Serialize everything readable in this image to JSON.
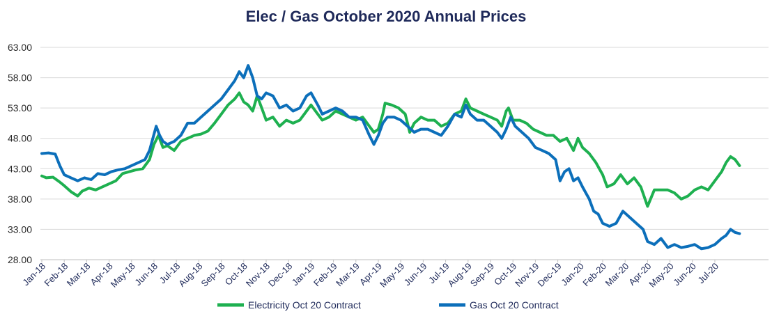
{
  "chart_data": {
    "type": "line",
    "title": "Elec / Gas October 2020 Annual Prices",
    "xlabel": "",
    "ylabel": "",
    "ylim": [
      28,
      63
    ],
    "yticks": [
      "63.00",
      "58.00",
      "53.00",
      "48.00",
      "43.00",
      "38.00",
      "33.00",
      "28.00"
    ],
    "x_ticks": [
      "Jan-18",
      "Feb-18",
      "Mar-18",
      "Apr-18",
      "May-18",
      "Jun-18",
      "Jul-18",
      "Aug-18",
      "Sep-18",
      "Oct-18",
      "Nov-18",
      "Dec-18",
      "Jan-19",
      "Feb-19",
      "Mar-19",
      "Apr-19",
      "May-19",
      "Jun-19",
      "Jul-19",
      "Aug-19",
      "Sep-19",
      "Oct-19",
      "Nov-19",
      "Dec-19",
      "Jan-20",
      "Feb-20",
      "Mar-20",
      "Apr-20",
      "May-20",
      "Jun-20",
      "Jul-20"
    ],
    "grid": true,
    "legend_position": "bottom",
    "series": [
      {
        "name": "Electricity Oct 20 Contract",
        "color": "#1eb050",
        "points": [
          [
            0,
            41.8
          ],
          [
            0.2,
            41.5
          ],
          [
            0.5,
            41.6
          ],
          [
            0.8,
            40.8
          ],
          [
            1.0,
            40.2
          ],
          [
            1.3,
            39.2
          ],
          [
            1.6,
            38.5
          ],
          [
            1.8,
            39.3
          ],
          [
            2.1,
            39.8
          ],
          [
            2.4,
            39.5
          ],
          [
            2.7,
            40.0
          ],
          [
            3.0,
            40.5
          ],
          [
            3.3,
            41.0
          ],
          [
            3.6,
            42.2
          ],
          [
            3.9,
            42.5
          ],
          [
            4.2,
            42.8
          ],
          [
            4.5,
            43.0
          ],
          [
            4.8,
            44.5
          ],
          [
            5.0,
            47.0
          ],
          [
            5.2,
            48.5
          ],
          [
            5.4,
            46.5
          ],
          [
            5.6,
            46.8
          ],
          [
            5.9,
            46.0
          ],
          [
            6.2,
            47.5
          ],
          [
            6.5,
            48.0
          ],
          [
            6.8,
            48.5
          ],
          [
            7.1,
            48.7
          ],
          [
            7.4,
            49.2
          ],
          [
            7.7,
            50.5
          ],
          [
            8.0,
            52.0
          ],
          [
            8.3,
            53.5
          ],
          [
            8.6,
            54.5
          ],
          [
            8.8,
            55.5
          ],
          [
            9.0,
            54.0
          ],
          [
            9.2,
            53.5
          ],
          [
            9.4,
            52.5
          ],
          [
            9.6,
            55.0
          ],
          [
            9.8,
            53.0
          ],
          [
            10.0,
            51.0
          ],
          [
            10.3,
            51.5
          ],
          [
            10.6,
            50.0
          ],
          [
            10.9,
            51.0
          ],
          [
            11.2,
            50.5
          ],
          [
            11.5,
            51.0
          ],
          [
            11.8,
            52.5
          ],
          [
            12.0,
            53.5
          ],
          [
            12.3,
            52.0
          ],
          [
            12.5,
            51.0
          ],
          [
            12.8,
            51.5
          ],
          [
            13.1,
            52.5
          ],
          [
            13.4,
            52.0
          ],
          [
            13.7,
            51.5
          ],
          [
            14.0,
            51.0
          ],
          [
            14.3,
            51.5
          ],
          [
            14.6,
            50.0
          ],
          [
            14.8,
            49.0
          ],
          [
            15.0,
            49.5
          ],
          [
            15.2,
            52.0
          ],
          [
            15.3,
            53.8
          ],
          [
            15.6,
            53.5
          ],
          [
            15.9,
            53.0
          ],
          [
            16.2,
            52.0
          ],
          [
            16.4,
            49.0
          ],
          [
            16.6,
            50.5
          ],
          [
            16.9,
            51.5
          ],
          [
            17.2,
            51.0
          ],
          [
            17.5,
            51.0
          ],
          [
            17.8,
            50.0
          ],
          [
            18.1,
            50.5
          ],
          [
            18.4,
            52.0
          ],
          [
            18.7,
            52.5
          ],
          [
            18.9,
            54.5
          ],
          [
            19.1,
            53.0
          ],
          [
            19.4,
            52.5
          ],
          [
            19.7,
            52.0
          ],
          [
            20.0,
            51.5
          ],
          [
            20.3,
            51.0
          ],
          [
            20.5,
            50.0
          ],
          [
            20.7,
            52.5
          ],
          [
            20.8,
            53.0
          ],
          [
            21.0,
            51.0
          ],
          [
            21.3,
            51.0
          ],
          [
            21.6,
            50.5
          ],
          [
            21.9,
            49.5
          ],
          [
            22.2,
            49.0
          ],
          [
            22.5,
            48.5
          ],
          [
            22.8,
            48.5
          ],
          [
            23.1,
            47.5
          ],
          [
            23.4,
            48.0
          ],
          [
            23.7,
            46.0
          ],
          [
            23.9,
            48.0
          ],
          [
            24.1,
            46.5
          ],
          [
            24.4,
            45.5
          ],
          [
            24.7,
            44.0
          ],
          [
            25.0,
            42.0
          ],
          [
            25.2,
            40.0
          ],
          [
            25.5,
            40.5
          ],
          [
            25.8,
            42.0
          ],
          [
            26.1,
            40.5
          ],
          [
            26.4,
            41.5
          ],
          [
            26.7,
            40.0
          ],
          [
            27.0,
            36.8
          ],
          [
            27.3,
            39.5
          ],
          [
            27.6,
            39.5
          ],
          [
            27.9,
            39.5
          ],
          [
            28.2,
            39.0
          ],
          [
            28.5,
            38.0
          ],
          [
            28.8,
            38.5
          ],
          [
            29.1,
            39.5
          ],
          [
            29.4,
            40.0
          ],
          [
            29.7,
            39.5
          ],
          [
            30.0,
            41.0
          ],
          [
            30.3,
            42.5
          ],
          [
            30.5,
            44.0
          ],
          [
            30.7,
            45.0
          ],
          [
            30.9,
            44.5
          ],
          [
            31.1,
            43.5
          ]
        ]
      },
      {
        "name": "Gas Oct 20 Contract",
        "color": "#0c6fba",
        "points": [
          [
            0,
            45.5
          ],
          [
            0.3,
            45.6
          ],
          [
            0.6,
            45.4
          ],
          [
            0.8,
            43.5
          ],
          [
            1.0,
            42.0
          ],
          [
            1.3,
            41.5
          ],
          [
            1.6,
            41.0
          ],
          [
            1.9,
            41.5
          ],
          [
            2.2,
            41.2
          ],
          [
            2.5,
            42.2
          ],
          [
            2.8,
            42.0
          ],
          [
            3.1,
            42.5
          ],
          [
            3.4,
            42.8
          ],
          [
            3.7,
            43.0
          ],
          [
            4.0,
            43.5
          ],
          [
            4.3,
            44.0
          ],
          [
            4.6,
            44.5
          ],
          [
            4.8,
            46.0
          ],
          [
            4.95,
            48.0
          ],
          [
            5.1,
            50.0
          ],
          [
            5.25,
            48.5
          ],
          [
            5.4,
            47.5
          ],
          [
            5.6,
            47.0
          ],
          [
            5.9,
            47.5
          ],
          [
            6.2,
            48.5
          ],
          [
            6.5,
            50.5
          ],
          [
            6.8,
            50.5
          ],
          [
            7.1,
            51.5
          ],
          [
            7.4,
            52.5
          ],
          [
            7.7,
            53.5
          ],
          [
            8.0,
            54.5
          ],
          [
            8.3,
            56.0
          ],
          [
            8.6,
            57.5
          ],
          [
            8.8,
            59.0
          ],
          [
            9.0,
            58.0
          ],
          [
            9.2,
            60.0
          ],
          [
            9.4,
            58.0
          ],
          [
            9.6,
            55.0
          ],
          [
            9.8,
            54.5
          ],
          [
            10.0,
            55.5
          ],
          [
            10.3,
            55.0
          ],
          [
            10.6,
            53.0
          ],
          [
            10.9,
            53.5
          ],
          [
            11.2,
            52.5
          ],
          [
            11.5,
            53.0
          ],
          [
            11.8,
            55.0
          ],
          [
            12.0,
            55.5
          ],
          [
            12.3,
            53.5
          ],
          [
            12.5,
            52.0
          ],
          [
            12.8,
            52.5
          ],
          [
            13.1,
            53.0
          ],
          [
            13.4,
            52.5
          ],
          [
            13.7,
            51.5
          ],
          [
            14.0,
            51.5
          ],
          [
            14.3,
            51.0
          ],
          [
            14.6,
            48.5
          ],
          [
            14.8,
            47.0
          ],
          [
            15.0,
            48.5
          ],
          [
            15.2,
            50.5
          ],
          [
            15.4,
            51.5
          ],
          [
            15.7,
            51.5
          ],
          [
            16.0,
            51.0
          ],
          [
            16.3,
            50.0
          ],
          [
            16.6,
            49.0
          ],
          [
            16.9,
            49.5
          ],
          [
            17.2,
            49.5
          ],
          [
            17.5,
            49.0
          ],
          [
            17.8,
            48.5
          ],
          [
            18.1,
            50.0
          ],
          [
            18.4,
            52.0
          ],
          [
            18.7,
            51.5
          ],
          [
            18.9,
            53.5
          ],
          [
            19.1,
            52.0
          ],
          [
            19.4,
            51.0
          ],
          [
            19.7,
            51.0
          ],
          [
            20.0,
            50.0
          ],
          [
            20.3,
            49.0
          ],
          [
            20.5,
            48.0
          ],
          [
            20.7,
            49.5
          ],
          [
            20.9,
            51.5
          ],
          [
            21.1,
            50.0
          ],
          [
            21.4,
            49.0
          ],
          [
            21.7,
            48.0
          ],
          [
            22.0,
            46.5
          ],
          [
            22.3,
            46.0
          ],
          [
            22.6,
            45.5
          ],
          [
            22.9,
            44.5
          ],
          [
            23.1,
            41.0
          ],
          [
            23.3,
            42.5
          ],
          [
            23.5,
            43.0
          ],
          [
            23.7,
            41.0
          ],
          [
            23.9,
            41.5
          ],
          [
            24.1,
            40.0
          ],
          [
            24.4,
            38.0
          ],
          [
            24.6,
            36.0
          ],
          [
            24.8,
            35.5
          ],
          [
            25.0,
            34.0
          ],
          [
            25.3,
            33.5
          ],
          [
            25.6,
            34.0
          ],
          [
            25.9,
            36.0
          ],
          [
            26.2,
            35.0
          ],
          [
            26.5,
            34.0
          ],
          [
            26.8,
            33.0
          ],
          [
            27.0,
            31.0
          ],
          [
            27.3,
            30.5
          ],
          [
            27.6,
            31.5
          ],
          [
            27.9,
            30.0
          ],
          [
            28.2,
            30.5
          ],
          [
            28.5,
            30.0
          ],
          [
            28.8,
            30.2
          ],
          [
            29.1,
            30.5
          ],
          [
            29.4,
            29.8
          ],
          [
            29.7,
            30.0
          ],
          [
            30.0,
            30.5
          ],
          [
            30.3,
            31.5
          ],
          [
            30.5,
            32.0
          ],
          [
            30.7,
            33.0
          ],
          [
            30.9,
            32.5
          ],
          [
            31.1,
            32.3
          ]
        ]
      }
    ]
  }
}
